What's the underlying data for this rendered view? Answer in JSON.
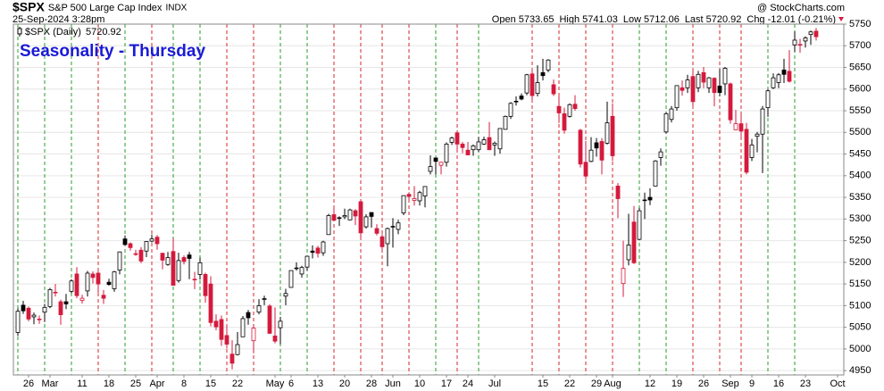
{
  "chart_data": {
    "type": "candlestick",
    "symbol": "$SPX",
    "name": "S&P 500 Large Cap Index",
    "exchange": "INDX",
    "timestamp": "25-Sep-2024 3:28pm",
    "copyright": "@ StockCharts.com",
    "title": "Seasonality - Thursday",
    "quote_labels": [
      "Open",
      "High",
      "Low",
      "Last",
      "Chg"
    ],
    "change": "-12.01 (-0.21%)",
    "ylim": [
      4940,
      5750
    ],
    "yticks": [
      4950,
      5000,
      5050,
      5100,
      5150,
      5200,
      5250,
      5300,
      5350,
      5400,
      5450,
      5500,
      5550,
      5600,
      5650,
      5700,
      5750
    ],
    "grid": true,
    "up_color": "#000000",
    "down_color": "#d41a3c",
    "categories": [
      null,
      null,
      "26",
      null,
      null,
      null,
      "Mar",
      null,
      null,
      null,
      null,
      null,
      "11",
      null,
      null,
      null,
      null,
      "18",
      null,
      null,
      null,
      null,
      "25",
      null,
      null,
      null,
      "Apr",
      null,
      null,
      null,
      null,
      "8",
      null,
      null,
      null,
      null,
      "15",
      null,
      null,
      null,
      null,
      "22",
      null,
      null,
      null,
      null,
      null,
      null,
      "May",
      null,
      null,
      "6",
      null,
      null,
      null,
      null,
      "13",
      null,
      null,
      null,
      null,
      "20",
      null,
      null,
      null,
      null,
      "28",
      null,
      null,
      null,
      "Jun",
      null,
      null,
      null,
      null,
      "10",
      null,
      null,
      null,
      null,
      "17",
      null,
      null,
      null,
      "24",
      null,
      null,
      null,
      null,
      "Jul",
      null,
      null,
      null,
      null,
      null,
      null,
      null,
      null,
      "15",
      null,
      null,
      null,
      null,
      "22",
      null,
      null,
      null,
      null,
      "29",
      null,
      null,
      "Aug",
      null,
      null,
      null,
      null,
      null,
      null,
      "12",
      null,
      null,
      null,
      null,
      "19",
      null,
      null,
      null,
      null,
      "26",
      null,
      null,
      null,
      null,
      "Sep",
      null,
      null,
      null,
      "9",
      null,
      null,
      null,
      null,
      "16",
      null,
      null,
      null,
      null,
      "23",
      null,
      null,
      null,
      null,
      null,
      "Oct"
    ],
    "thursday_lines": [
      "#2a9d2a",
      null,
      null,
      null,
      null,
      "#2a9d2a",
      null,
      null,
      null,
      null,
      "#2a9d2a",
      null,
      null,
      null,
      null,
      "#d62728",
      null,
      null,
      null,
      null,
      "#2a9d2a",
      null,
      null,
      null,
      null,
      "#d62728",
      null,
      null,
      null,
      "#2a9d2a",
      null,
      null,
      null,
      null,
      "#2a9d2a",
      null,
      null,
      null,
      null,
      "#d62728",
      null,
      null,
      null,
      null,
      "#d62728",
      null,
      null,
      null,
      null,
      "#2a9d2a",
      null,
      null,
      null,
      null,
      "#2a9d2a",
      null,
      null,
      null,
      null,
      "#d62728",
      null,
      null,
      null,
      null,
      "#d62728",
      null,
      null,
      null,
      "#d62728",
      null,
      null,
      null,
      null,
      "#d62728",
      null,
      null,
      null,
      null,
      "#2a9d2a",
      null,
      null,
      null,
      "#d62728",
      null,
      null,
      null,
      "#2a9d2a",
      null,
      null,
      null,
      null,
      null,
      null,
      null,
      null,
      null,
      "#d62728",
      null,
      null,
      null,
      null,
      "#d62728",
      null,
      null,
      null,
      null,
      "#d62728",
      null,
      null,
      null,
      null,
      "#d62728",
      null,
      null,
      null,
      null,
      "#2a9d2a",
      null,
      null,
      null,
      null,
      "#2a9d2a",
      null,
      null,
      null,
      null,
      "#d62728",
      null,
      null,
      null,
      null,
      "#d62728",
      null,
      null,
      null,
      "#d62728",
      null,
      null,
      null,
      null,
      "#2a9d2a",
      null,
      null,
      null,
      null,
      "#2a9d2a",
      null,
      null,
      null,
      null,
      null,
      null,
      null,
      null
    ],
    "series": [
      {
        "name": "$SPX (Daily)",
        "open": [
          5038,
          5101,
          5094,
          5074,
          5068,
          5085,
          5098,
          5131,
          5109,
          5109,
          5133,
          5173,
          5112,
          5134,
          5173,
          5175,
          5124,
          5154,
          5139,
          5182,
          5254,
          5243,
          5220,
          5228,
          5226,
          5249,
          5258,
          5221,
          5195,
          5225,
          5158,
          5211,
          5217,
          5161,
          5172,
          5172,
          5150,
          5064,
          5068,
          5031,
          4988,
          4987,
          5028,
          5084,
          5019,
          5085,
          5114,
          5099,
          5030,
          5049,
          5122,
          5142,
          5187,
          5173,
          5189,
          5226,
          5233,
          5222,
          5264,
          5310,
          5303,
          5305,
          5298,
          5319,
          5340,
          5282,
          5315,
          5278,
          5259,
          5243,
          5283,
          5276,
          5314,
          5357,
          5343,
          5342,
          5353,
          5410,
          5441,
          5424,
          5431,
          5477,
          5499,
          5473,
          5459,
          5460,
          5460,
          5473,
          5488,
          5471,
          5462,
          5507,
          5537,
          5572,
          5584,
          5591,
          5635,
          5590,
          5638,
          5644,
          5610,
          5560,
          5543,
          5537,
          5565,
          5505,
          5431,
          5433,
          5476,
          5479,
          5475,
          5537,
          5376,
          5151,
          5206,
          5293,
          5253,
          5343,
          5350,
          5376,
          5442,
          5501,
          5530,
          5557,
          5603,
          5603,
          5629,
          5603,
          5638,
          5603,
          5625,
          5607,
          5612,
          5612,
          5506,
          5520,
          5507,
          5442,
          5491,
          5496,
          5557,
          5603,
          5615,
          5644,
          5641,
          5702,
          5702,
          5711,
          5726,
          5733.65,
          null,
          null,
          null,
          null
        ],
        "high": [
          5094,
          5111,
          5098,
          5084,
          5077,
          5104,
          5141,
          5150,
          5114,
          5127,
          5161,
          5189,
          5125,
          5180,
          5179,
          5179,
          5136,
          5162,
          5180,
          5225,
          5262,
          5246,
          5229,
          5235,
          5249,
          5264,
          5263,
          5222,
          5224,
          5256,
          5222,
          5216,
          5224,
          5178,
          5211,
          5176,
          5168,
          5080,
          5077,
          5052,
          5020,
          5039,
          5076,
          5090,
          5057,
          5115,
          5123,
          5103,
          5096,
          5074,
          5139,
          5181,
          5200,
          5192,
          5215,
          5239,
          5238,
          5250,
          5312,
          5325,
          5306,
          5324,
          5324,
          5323,
          5342,
          5311,
          5315,
          5288,
          5265,
          5280,
          5302,
          5298,
          5354,
          5362,
          5376,
          5365,
          5375,
          5447,
          5441,
          5432,
          5477,
          5490,
          5505,
          5478,
          5478,
          5472,
          5489,
          5490,
          5524,
          5479,
          5510,
          5539,
          5570,
          5583,
          5590,
          5635,
          5642,
          5655,
          5670,
          5669,
          5622,
          5583,
          5557,
          5567,
          5586,
          5508,
          5480,
          5489,
          5487,
          5487,
          5571,
          5567,
          5383,
          5250,
          5312,
          5330,
          5326,
          5361,
          5371,
          5436,
          5463,
          5547,
          5561,
          5608,
          5620,
          5633,
          5643,
          5642,
          5651,
          5628,
          5627,
          5646,
          5651,
          5615,
          5552,
          5540,
          5522,
          5485,
          5501,
          5561,
          5600,
          5636,
          5637,
          5670,
          5690,
          5733,
          5716,
          5722,
          5735,
          5741.03,
          null,
          null,
          null,
          null
        ],
        "low": [
          5030,
          5081,
          5064,
          5057,
          5058,
          5062,
          5094,
          5121,
          5056,
          5092,
          5128,
          5117,
          5105,
          5121,
          5151,
          5130,
          5104,
          5146,
          5132,
          5172,
          5239,
          5227,
          5215,
          5198,
          5212,
          5246,
          5229,
          5184,
          5192,
          5146,
          5153,
          5195,
          5161,
          5138,
          5160,
          5107,
          5052,
          5043,
          5007,
          5001,
          4953,
          4985,
          5028,
          5056,
          4990,
          5080,
          5101,
          5035,
          5013,
          5011,
          5101,
          5142,
          5181,
          5165,
          5181,
          5209,
          5211,
          5215,
          5264,
          5296,
          5284,
          5300,
          5297,
          5286,
          5256,
          5278,
          5280,
          5262,
          5222,
          5191,
          5234,
          5265,
          5309,
          5346,
          5331,
          5331,
          5327,
          5403,
          5403,
          5403,
          5421,
          5471,
          5455,
          5452,
          5447,
          5446,
          5455,
          5471,
          5459,
          5446,
          5451,
          5507,
          5531,
          5562,
          5574,
          5586,
          5575,
          5583,
          5620,
          5639,
          5584,
          5522,
          5497,
          5534,
          5550,
          5419,
          5390,
          5431,
          5444,
          5403,
          5472,
          5434,
          5302,
          5120,
          5193,
          5196,
          5251,
          5300,
          5332,
          5376,
          5423,
          5497,
          5523,
          5550,
          5585,
          5591,
          5561,
          5593,
          5602,
          5591,
          5560,
          5583,
          5586,
          5520,
          5505,
          5490,
          5403,
          5434,
          5454,
          5406,
          5536,
          5600,
          5602,
          5614,
          5615,
          5686,
          5684,
          5696,
          5702,
          5712.06,
          null,
          null,
          null,
          null
        ],
        "close": [
          5087,
          5088,
          5069,
          5078,
          5069,
          5096,
          5137,
          5130,
          5079,
          5104,
          5157,
          5123,
          5117,
          5175,
          5165,
          5150,
          5117,
          5149,
          5178,
          5224,
          5241,
          5234,
          5218,
          5203,
          5248,
          5254,
          5243,
          5205,
          5211,
          5147,
          5204,
          5202,
          5209,
          5161,
          5199,
          5123,
          5061,
          5051,
          5022,
          5011,
          4967,
          5010,
          5070,
          5072,
          5048,
          5100,
          5116,
          5036,
          5018,
          5064,
          5128,
          5181,
          5187,
          5188,
          5214,
          5223,
          5221,
          5247,
          5308,
          5297,
          5303,
          5308,
          5321,
          5307,
          5268,
          5305,
          5306,
          5267,
          5236,
          5278,
          5283,
          5291,
          5354,
          5352,
          5347,
          5361,
          5375,
          5421,
          5433,
          5431,
          5473,
          5487,
          5473,
          5465,
          5448,
          5469,
          5478,
          5483,
          5460,
          5475,
          5509,
          5537,
          5567,
          5572,
          5577,
          5633,
          5585,
          5615,
          5631,
          5667,
          5589,
          5545,
          5505,
          5564,
          5555,
          5427,
          5399,
          5459,
          5464,
          5436,
          5522,
          5446,
          5347,
          5186,
          5240,
          5199,
          5319,
          5344,
          5344,
          5434,
          5455,
          5543,
          5554,
          5608,
          5597,
          5621,
          5571,
          5634,
          5616,
          5626,
          5592,
          5592,
          5648,
          5529,
          5520,
          5503,
          5408,
          5471,
          5496,
          5554,
          5596,
          5626,
          5633,
          5634,
          5618,
          5713,
          5703,
          5718,
          5732,
          5720.92,
          null,
          null,
          null,
          null
        ]
      }
    ]
  }
}
